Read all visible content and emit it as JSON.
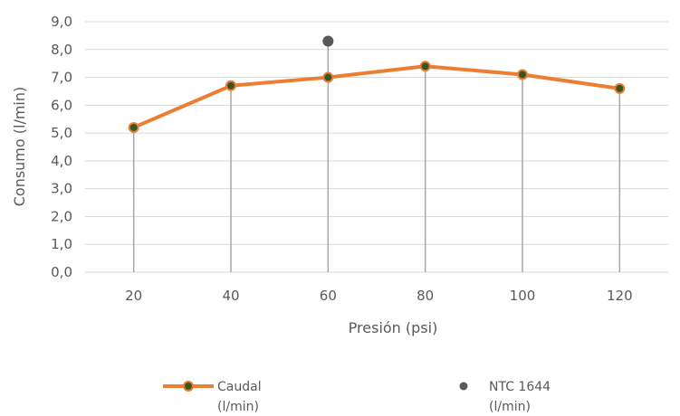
{
  "chart_data": {
    "type": "line",
    "xlabel": "Presión (psi)",
    "ylabel": "Consumo (l/min)",
    "categories": [
      "20",
      "40",
      "60",
      "80",
      "100",
      "120"
    ],
    "ylim": [
      0,
      9
    ],
    "y_ticks": [
      "0,0",
      "1,0",
      "2,0",
      "3,0",
      "4,0",
      "5,0",
      "6,0",
      "7,0",
      "8,0",
      "9,0"
    ],
    "grid": "horizontal",
    "drop_lines": true,
    "legend_position": "bottom",
    "series": [
      {
        "name_line1": "Caudal",
        "name_line2": "(l/min)",
        "kind": "line-with-markers",
        "color": "#ED7D31",
        "marker_color": "#375623",
        "values": [
          5.2,
          6.7,
          7.0,
          7.4,
          7.1,
          6.6
        ]
      },
      {
        "name_line1": "NTC 1644",
        "name_line2": "(l/min)",
        "kind": "marker-only",
        "color": "#595959",
        "values": [
          null,
          null,
          8.3,
          null,
          null,
          null
        ]
      }
    ]
  }
}
